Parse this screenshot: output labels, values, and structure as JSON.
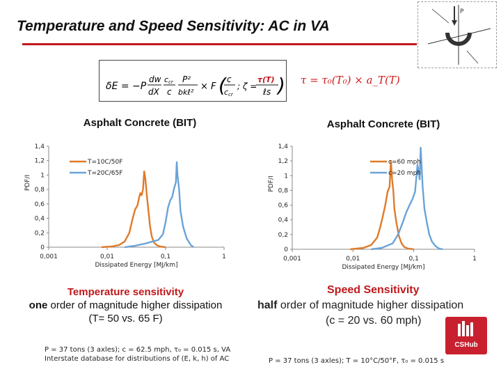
{
  "slide": {
    "title": "Temperature and Speed Sensitivity: AC in VA"
  },
  "formulas": {
    "left": "δE = −P (dw/dX) (c_cr/c) (P²/bkℓs²) × F (c/c_cr ; ζ = τ(T)c_cr/ℓs)",
    "right": "τ = τ₀(T₀) × a_T(T)"
  },
  "captions": {
    "temperature_heading": "Temperature sensitivity",
    "temperature_emphasis": "one",
    "temperature_rest": " order of magnitude higher dissipation",
    "temperature_detail": "(T= 50 vs. 65 F)",
    "speed_heading": "Speed Sensitivity",
    "speed_emphasis": "half",
    "speed_rest": " order of magnitude higher dissipation",
    "speed_detail": "(c = 20 vs. 60 mph)"
  },
  "footnotes": {
    "left_line1": "P = 37 tons (3 axles); c = 62.5 mph, τ₀ = 0.015 s, VA",
    "left_line2": "Interstate database for distributions of (E, k, h) of AC",
    "right": "P = 37 tons (3 axles); T = 10°C/50°F, τ₀ = 0.015 s"
  },
  "logo": {
    "badge_text": "CSHub"
  },
  "colors": {
    "title_rule": "#c0181b",
    "series_orange": "#e07a28",
    "series_blue": "#6aa3d8"
  },
  "chart_data": [
    {
      "type": "line",
      "title": "Asphalt Concrete (BIT)",
      "xlabel": "Dissipated Energy [MJ/km]",
      "ylabel": "PDF/I",
      "x_scale": "log",
      "xlim": [
        0.001,
        1
      ],
      "ylim": [
        0,
        1.4
      ],
      "x_ticks": [
        "0,001",
        "0,01",
        "0,1",
        "1"
      ],
      "y_ticks": [
        "0",
        "0,2",
        "0,4",
        "0,6",
        "0,8",
        "1",
        "1,2",
        "1,4"
      ],
      "legend_position": "top-left",
      "series": [
        {
          "name": "T=10C/50F",
          "color": "#e07a28",
          "x": [
            0.008,
            0.012,
            0.016,
            0.02,
            0.024,
            0.027,
            0.03,
            0.033,
            0.035,
            0.037,
            0.039,
            0.041,
            0.043,
            0.045,
            0.048,
            0.051,
            0.054,
            0.058,
            0.063,
            0.07,
            0.08,
            0.1
          ],
          "y": [
            0,
            0.01,
            0.03,
            0.08,
            0.2,
            0.38,
            0.52,
            0.58,
            0.68,
            0.75,
            0.72,
            0.8,
            1.05,
            0.95,
            0.7,
            0.5,
            0.3,
            0.15,
            0.07,
            0.03,
            0.01,
            0
          ]
        },
        {
          "name": "T=20C/65F",
          "color": "#6aa3d8",
          "x": [
            0.02,
            0.03,
            0.045,
            0.06,
            0.075,
            0.09,
            0.1,
            0.11,
            0.12,
            0.13,
            0.14,
            0.15,
            0.155,
            0.16,
            0.17,
            0.18,
            0.2,
            0.23,
            0.27,
            0.3
          ],
          "y": [
            0,
            0.02,
            0.05,
            0.08,
            0.1,
            0.18,
            0.35,
            0.55,
            0.65,
            0.7,
            0.82,
            0.9,
            1.18,
            1.0,
            0.8,
            0.5,
            0.28,
            0.12,
            0.03,
            0
          ]
        }
      ]
    },
    {
      "type": "line",
      "title": "Asphalt Concrete (BIT)",
      "xlabel": "Dissipated Energy [MJ/km]",
      "ylabel": "PDF/I",
      "x_scale": "log",
      "xlim": [
        0.001,
        1
      ],
      "ylim": [
        0,
        1.4
      ],
      "x_ticks": [
        "0,001",
        "0,01",
        "0,1",
        "1"
      ],
      "y_ticks": [
        "0",
        "0,2",
        "0,4",
        "0,6",
        "0,8",
        "1",
        "1,2",
        "1,4"
      ],
      "legend_position": "top-right",
      "series": [
        {
          "name": "c=60 mph",
          "color": "#e07a28",
          "x": [
            0.009,
            0.015,
            0.02,
            0.025,
            0.028,
            0.031,
            0.034,
            0.037,
            0.04,
            0.042,
            0.044,
            0.046,
            0.048,
            0.052,
            0.057,
            0.063,
            0.07,
            0.08,
            0.1
          ],
          "y": [
            0,
            0.02,
            0.06,
            0.16,
            0.3,
            0.45,
            0.6,
            0.78,
            0.85,
            1.2,
            0.95,
            0.8,
            0.55,
            0.35,
            0.18,
            0.08,
            0.03,
            0.01,
            0
          ]
        },
        {
          "name": "c=20 mph",
          "color": "#6aa3d8",
          "x": [
            0.02,
            0.03,
            0.045,
            0.055,
            0.065,
            0.075,
            0.085,
            0.095,
            0.105,
            0.115,
            0.125,
            0.13,
            0.14,
            0.15,
            0.165,
            0.18,
            0.2,
            0.23,
            0.26,
            0.3
          ],
          "y": [
            0,
            0.02,
            0.08,
            0.2,
            0.35,
            0.5,
            0.6,
            0.68,
            0.78,
            1.15,
            0.95,
            1.38,
            0.85,
            0.55,
            0.35,
            0.2,
            0.1,
            0.04,
            0.01,
            0
          ]
        }
      ]
    }
  ]
}
